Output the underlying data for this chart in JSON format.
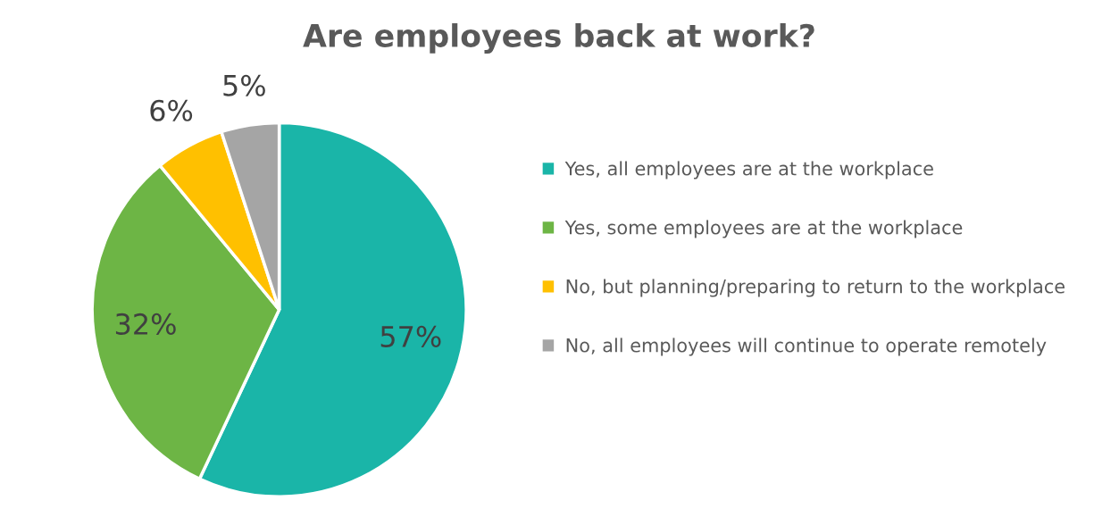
{
  "chart_data": {
    "type": "pie",
    "title": "Are employees back at work?",
    "categories": [
      "Yes, all employees are at the workplace",
      "Yes, some employees are at the workplace",
      "No, but planning/preparing to return to the workplace",
      "No, all employees will continue to operate remotely"
    ],
    "values": [
      57,
      32,
      6,
      5
    ],
    "colors": [
      "#1ab5a8",
      "#6db545",
      "#ffc000",
      "#a5a5a5"
    ],
    "value_labels": [
      "57%",
      "32%",
      "6%",
      "5%"
    ],
    "legend": "right"
  }
}
